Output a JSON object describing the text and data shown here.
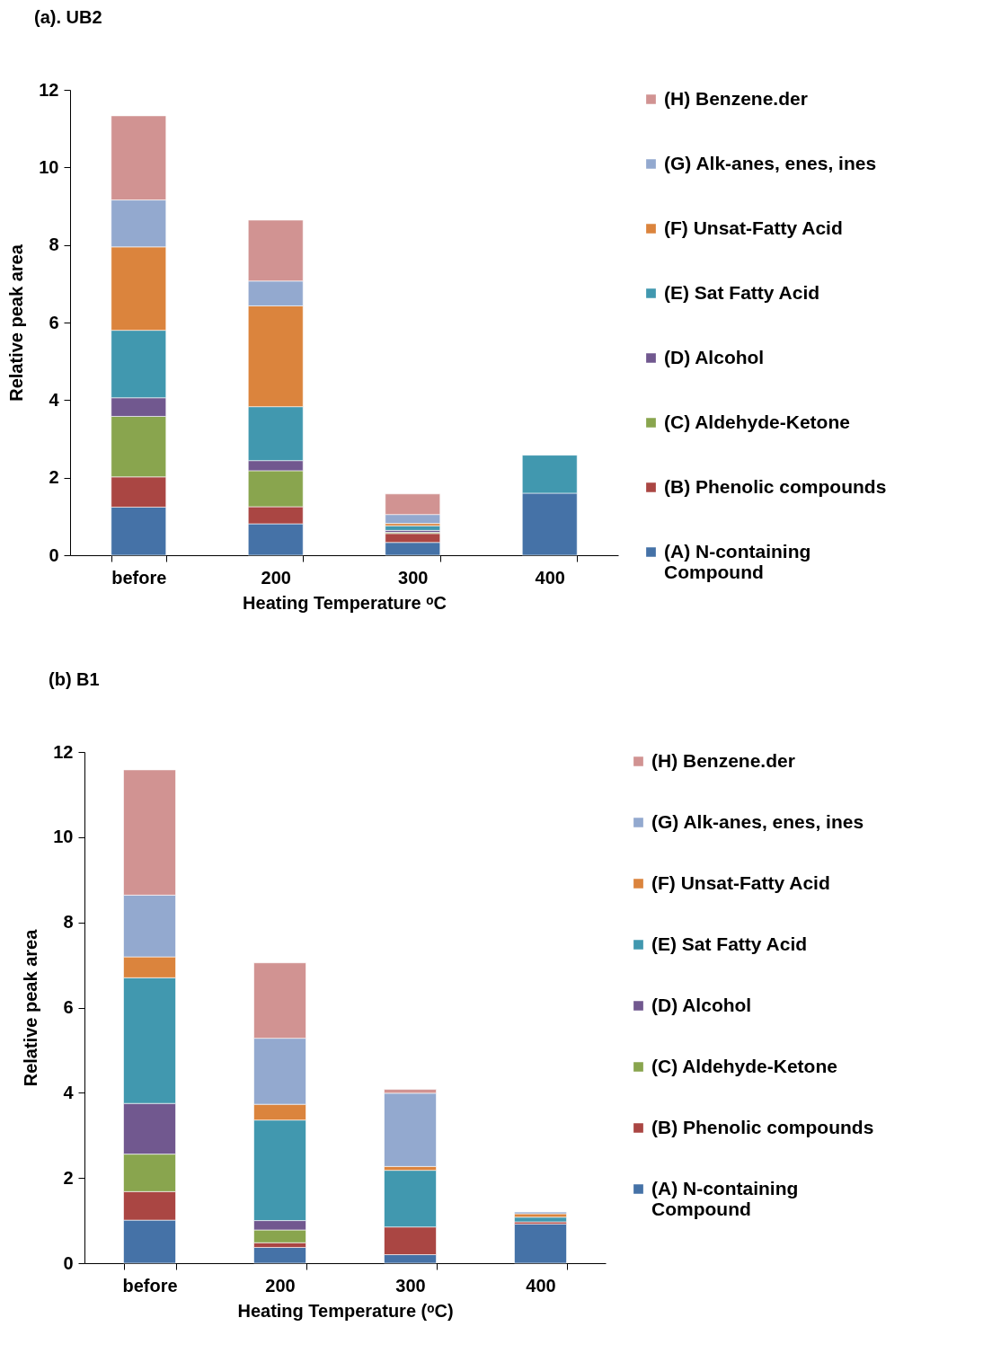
{
  "chart_data": [
    {
      "type": "bar",
      "title": "(a).  UB2",
      "xlabel": "Heating Temperature ᵒC",
      "ylabel": "Relative peak area",
      "categories": [
        "before",
        "200",
        "300",
        "400"
      ],
      "stacked": true,
      "ylim": [
        0,
        12
      ],
      "yticks": [
        0,
        2,
        4,
        6,
        8,
        10,
        12
      ],
      "legend": "right",
      "series": [
        {
          "name": "(A)  N-containing Compound",
          "color": "#4572a7",
          "values": [
            1.24,
            0.81,
            0.33,
            1.6
          ]
        },
        {
          "name": "(B) Phenolic compounds",
          "color": "#aa4643",
          "values": [
            0.78,
            0.44,
            0.23,
            0
          ]
        },
        {
          "name": "(C) Aldehyde-Ketone",
          "color": "#89a54e",
          "values": [
            1.56,
            0.93,
            0.03,
            0
          ]
        },
        {
          "name": "(D) Alcohol",
          "color": "#71588f",
          "values": [
            0.48,
            0.26,
            0.05,
            0
          ]
        },
        {
          "name": "(E) Sat Fatty Acid",
          "color": "#4198af",
          "values": [
            1.74,
            1.39,
            0.12,
            0.98
          ]
        },
        {
          "name": "(F) Unsat-Fatty Acid",
          "color": "#db843d",
          "values": [
            2.15,
            2.6,
            0.06,
            0
          ]
        },
        {
          "name": "(G) Alk-anes, enes, ines",
          "color": "#93a9cf",
          "values": [
            1.21,
            0.64,
            0.23,
            0
          ]
        },
        {
          "name": "(H) Benzene.der",
          "color": "#d19392",
          "values": [
            2.17,
            1.57,
            0.53,
            0
          ]
        }
      ]
    },
    {
      "type": "bar",
      "title": "(b) B1",
      "xlabel": "Heating Temperature (ᵒC)",
      "ylabel": "Relative peak area",
      "categories": [
        "before",
        "200",
        "300",
        "400"
      ],
      "stacked": true,
      "ylim": [
        0,
        12
      ],
      "yticks": [
        0,
        2,
        4,
        6,
        8,
        10,
        12
      ],
      "legend": "right",
      "series": [
        {
          "name": "(A)  N-containing Compound",
          "color": "#4572a7",
          "values": [
            1.01,
            0.37,
            0.2,
            0.92
          ]
        },
        {
          "name": "(B) Phenolic compounds",
          "color": "#aa4643",
          "values": [
            0.67,
            0.11,
            0.65,
            0.05
          ]
        },
        {
          "name": "(C) Aldehyde-Ketone",
          "color": "#89a54e",
          "values": [
            0.88,
            0.3,
            0,
            0
          ]
        },
        {
          "name": "(D) Alcohol",
          "color": "#71588f",
          "values": [
            1.19,
            0.22,
            0,
            0
          ]
        },
        {
          "name": "(E) Sat Fatty Acid",
          "color": "#4198af",
          "values": [
            2.95,
            2.36,
            1.33,
            0.11
          ]
        },
        {
          "name": "(F) Unsat-Fatty Acid",
          "color": "#db843d",
          "values": [
            0.49,
            0.37,
            0.09,
            0.08
          ]
        },
        {
          "name": "(G) Alk-anes, enes, ines",
          "color": "#93a9cf",
          "values": [
            1.45,
            1.55,
            1.72,
            0.04
          ]
        },
        {
          "name": "(H) Benzene.der",
          "color": "#d19392",
          "values": [
            2.94,
            1.77,
            0.09,
            0
          ]
        }
      ]
    }
  ]
}
